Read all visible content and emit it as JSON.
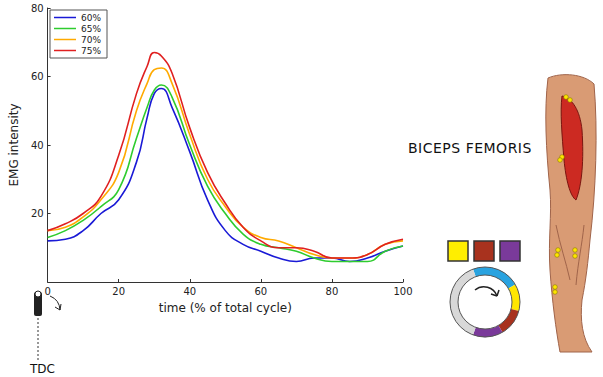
{
  "chart_data": {
    "type": "line",
    "x_label": "time (% of total cycle)",
    "y_label": "EMG intensity",
    "annotations": [
      "BICEPS FEMORIS",
      "TDC"
    ],
    "x": [
      0,
      5,
      10,
      15,
      20,
      25,
      28,
      30,
      32,
      35,
      40,
      45,
      50,
      55,
      60,
      65,
      70,
      75,
      80,
      85,
      90,
      95,
      100
    ],
    "series": [
      {
        "name": "60%",
        "color": "#1a1ad6",
        "values": [
          12,
          12.5,
          15,
          20,
          24,
          35,
          48,
          55,
          56.5,
          51,
          38,
          24,
          15,
          11,
          9,
          7,
          6,
          7,
          7,
          6,
          7,
          9,
          10.5
        ]
      },
      {
        "name": "65%",
        "color": "#2ecc2e",
        "values": [
          13,
          15,
          18,
          22,
          27,
          42,
          51,
          56,
          57.5,
          54,
          40,
          28,
          20,
          14,
          11,
          10,
          9,
          7,
          6,
          6,
          6,
          9,
          10.5
        ]
      },
      {
        "name": "70%",
        "color": "#ffaa00",
        "values": [
          15,
          16,
          19,
          24,
          32,
          50,
          58,
          62,
          62.5,
          58,
          43,
          30,
          22,
          16,
          13,
          12,
          10,
          8,
          7,
          7,
          8,
          11,
          12
        ]
      },
      {
        "name": "75%",
        "color": "#e02020",
        "values": [
          15,
          17,
          20,
          25,
          37,
          55,
          63,
          67,
          66,
          61,
          45,
          32,
          23,
          16,
          12,
          10,
          10,
          9,
          7,
          7,
          8,
          11,
          12.5
        ]
      }
    ],
    "xlim": [
      0,
      100
    ],
    "xticks": [
      0,
      20,
      40,
      60,
      80,
      100
    ],
    "ylim": [
      0,
      80
    ],
    "yticks": [
      20,
      40,
      60,
      80
    ],
    "grid": false,
    "legend": "upper left"
  }
}
